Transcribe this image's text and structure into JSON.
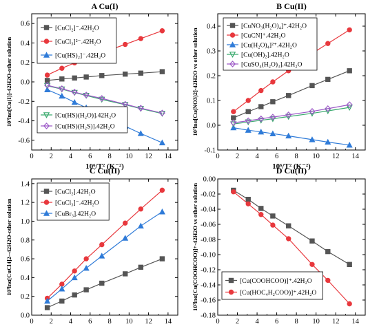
{
  "chart_data": [
    {
      "panel": "A",
      "title": "A Cu(I)",
      "type": "line",
      "xlabel": "10⁶/T² (K⁻²)",
      "ylabel": "10³lnα[Cu(I)]-42H2O-other solution",
      "xlim": [
        0,
        15
      ],
      "ylim": [
        -0.7,
        0.7
      ],
      "xticks": [
        0,
        2,
        4,
        6,
        8,
        10,
        12,
        14
      ],
      "yticks": [
        -0.6,
        -0.4,
        -0.2,
        0.0,
        0.2,
        0.4,
        0.6
      ],
      "x": [
        1.6,
        3.1,
        4.4,
        5.6,
        7.2,
        9.6,
        11.2,
        13.4
      ],
      "legend_top": [
        "CuCl2",
        "CuCl3",
        "CuHS2"
      ],
      "legend_bottom": [
        "CuHSH2O",
        "CuHSH2S"
      ],
      "series": [
        {
          "key": "CuCl2",
          "name": "[CuCl₂]⁻.42H₂O",
          "color": "#555555",
          "marker": "square",
          "values": [
            0.015,
            0.03,
            0.04,
            0.05,
            0.065,
            0.08,
            0.09,
            0.105
          ]
        },
        {
          "key": "CuCl3",
          "name": "[CuCl₃]²⁻.42H₂O",
          "color": "#e8383d",
          "marker": "circle",
          "values": [
            0.07,
            0.14,
            0.195,
            0.24,
            0.3,
            0.385,
            0.445,
            0.525
          ]
        },
        {
          "key": "CuHS2",
          "name": "[Cu(HS)₂]⁻.42H₂O",
          "color": "#2f7bd8",
          "marker": "triangle-up",
          "values": [
            -0.08,
            -0.145,
            -0.21,
            -0.265,
            -0.34,
            -0.455,
            -0.53,
            -0.625
          ]
        },
        {
          "key": "CuHSH2O",
          "name": "[Cu(HS)(H₂O)].42H₂O",
          "color": "#3aaa6e",
          "marker": "triangle-down",
          "values": [
            -0.04,
            -0.075,
            -0.11,
            -0.14,
            -0.18,
            -0.235,
            -0.275,
            -0.325
          ]
        },
        {
          "key": "CuHSH2S",
          "name": "[Cu(HS)(H₂S)].42H₂O",
          "color": "#9d5ac8",
          "marker": "diamond",
          "values": [
            -0.035,
            -0.07,
            -0.105,
            -0.135,
            -0.17,
            -0.23,
            -0.27,
            -0.32
          ]
        }
      ]
    },
    {
      "panel": "B",
      "title": "B Cu(II)",
      "type": "line",
      "xlabel": "10⁶/T² (K⁻²)",
      "ylabel": "10³lnα[Cu(NO3)2]-42H2O vs other solution",
      "xlim": [
        0,
        15
      ],
      "ylim": [
        -0.1,
        0.45
      ],
      "xticks": [
        0,
        2,
        4,
        6,
        8,
        10,
        12,
        14
      ],
      "yticks": [
        -0.1,
        0.0,
        0.1,
        0.2,
        0.3,
        0.4
      ],
      "x": [
        1.6,
        3.1,
        4.4,
        5.6,
        7.2,
        9.6,
        11.2,
        13.4
      ],
      "legend_top": [
        "CuNO3",
        "CuCN",
        "CuH2O4",
        "CuOH2",
        "CuSO4"
      ],
      "series": [
        {
          "key": "CuNO3",
          "name": "[CuNO₃(H₂O)₄]⁺.42H₂O",
          "color": "#555555",
          "marker": "square",
          "values": [
            0.03,
            0.055,
            0.075,
            0.095,
            0.12,
            0.16,
            0.185,
            0.22
          ]
        },
        {
          "key": "CuCN",
          "name": "[CuCN]⁺.42H₂O",
          "color": "#e8383d",
          "marker": "circle",
          "values": [
            0.055,
            0.1,
            0.14,
            0.175,
            0.22,
            0.29,
            0.33,
            0.385
          ]
        },
        {
          "key": "CuH2O4",
          "name": "[Cu(H₂O)₄]²⁺.42H₂O",
          "color": "#2f7bd8",
          "marker": "triangle-up",
          "values": [
            -0.01,
            -0.02,
            -0.027,
            -0.034,
            -0.043,
            -0.058,
            -0.068,
            -0.08
          ]
        },
        {
          "key": "CuOH2",
          "name": "[Cu(OH)₂].42H₂O",
          "color": "#3aaa6e",
          "marker": "triangle-down",
          "values": [
            0.005,
            0.013,
            0.02,
            0.026,
            0.035,
            0.048,
            0.058,
            0.072
          ]
        },
        {
          "key": "CuSO4",
          "name": "[CuSO₄(H₂O)₃].42H₂O",
          "color": "#9d5ac8",
          "marker": "diamond",
          "values": [
            0.01,
            0.018,
            0.026,
            0.033,
            0.042,
            0.056,
            0.067,
            0.083
          ]
        }
      ]
    },
    {
      "panel": "C",
      "title": "C Cu(II)",
      "type": "line",
      "xlabel": "10⁶/T² (K⁻²)",
      "ylabel": "10³lnα[CuCl4]2--42H2O-other solution",
      "xlim": [
        0,
        15
      ],
      "ylim": [
        0.0,
        1.45
      ],
      "xticks": [
        0,
        2,
        4,
        6,
        8,
        10,
        12,
        14
      ],
      "yticks": [
        0.0,
        0.2,
        0.4,
        0.6,
        0.8,
        1.0,
        1.2,
        1.4
      ],
      "x": [
        1.6,
        3.1,
        4.4,
        5.6,
        7.2,
        9.6,
        11.2,
        13.4
      ],
      "legend_top": [
        "CuCl2b",
        "CuCl3b",
        "CuBr3"
      ],
      "series": [
        {
          "key": "CuCl2b",
          "name": "[CuCl₂].42H₂O",
          "color": "#555555",
          "marker": "square",
          "values": [
            0.08,
            0.15,
            0.215,
            0.27,
            0.34,
            0.44,
            0.51,
            0.6
          ]
        },
        {
          "key": "CuCl3b",
          "name": "[CuCl₃]⁻.42H₂O",
          "color": "#e8383d",
          "marker": "circle",
          "values": [
            0.18,
            0.33,
            0.47,
            0.6,
            0.75,
            0.98,
            1.13,
            1.33
          ]
        },
        {
          "key": "CuBr3",
          "name": "[CuBr₃].42H₂O",
          "color": "#2f7bd8",
          "marker": "triangle-up",
          "values": [
            0.15,
            0.28,
            0.4,
            0.5,
            0.63,
            0.82,
            0.95,
            1.1
          ]
        }
      ]
    },
    {
      "panel": "D",
      "title": "D Cu(II)",
      "type": "line",
      "xlabel": "10⁶/T² (K⁻²)",
      "ylabel": "10³lnα[Cu(COOHCOO)]+-42H2O vs other solution",
      "xlim": [
        0,
        15
      ],
      "ylim": [
        -0.18,
        0.0
      ],
      "xticks": [
        0,
        2,
        4,
        6,
        8,
        10,
        12,
        14
      ],
      "yticks": [
        -0.18,
        -0.16,
        -0.14,
        -0.12,
        -0.1,
        -0.08,
        -0.06,
        -0.04,
        -0.02,
        0.0
      ],
      "x": [
        1.6,
        3.1,
        4.4,
        5.6,
        7.2,
        9.6,
        11.2,
        13.4
      ],
      "legend_bottom": [
        "CuCOOH",
        "CuHOC"
      ],
      "series": [
        {
          "key": "CuCOOH",
          "name": "[Cu(COOHCOO)]⁺.42H₂O",
          "color": "#555555",
          "marker": "square",
          "values": [
            -0.015,
            -0.027,
            -0.039,
            -0.049,
            -0.062,
            -0.082,
            -0.096,
            -0.113
          ]
        },
        {
          "key": "CuHOC",
          "name": "[Cu(HOC₄H₂COO)]⁺.42H₂O",
          "color": "#e8383d",
          "marker": "circle",
          "values": [
            -0.017,
            -0.033,
            -0.047,
            -0.061,
            -0.079,
            -0.113,
            -0.134,
            -0.165
          ]
        }
      ]
    }
  ]
}
